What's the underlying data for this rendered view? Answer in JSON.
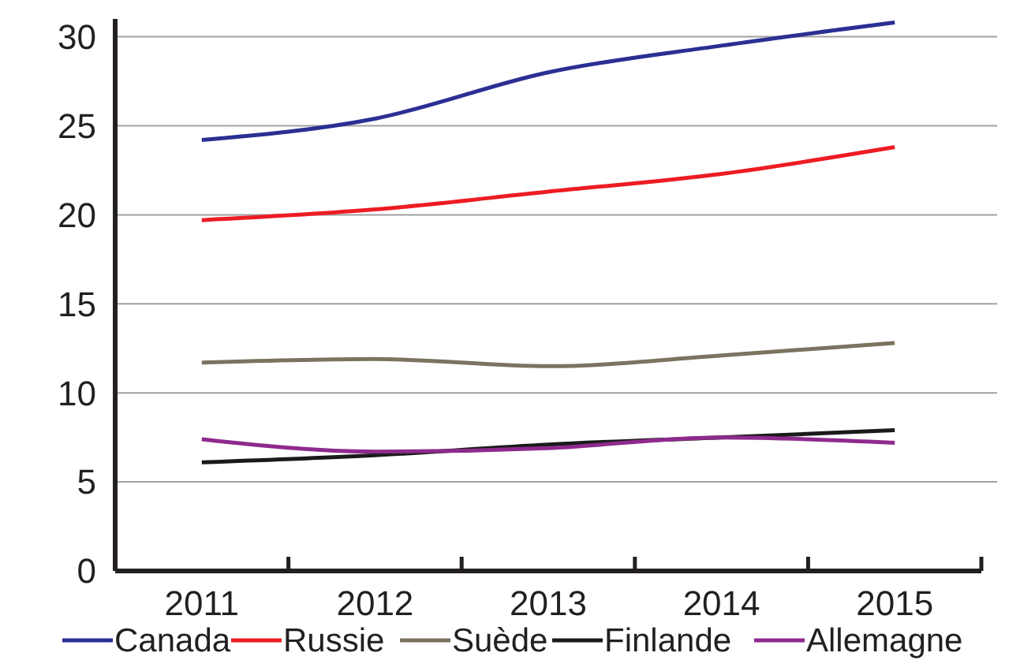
{
  "chart_data": {
    "type": "line",
    "categories": [
      "2011",
      "2012",
      "2013",
      "2014",
      "2015"
    ],
    "series": [
      {
        "name": "Canada",
        "color": "#2b2f93",
        "values": [
          24.2,
          25.4,
          28.0,
          29.5,
          30.8
        ]
      },
      {
        "name": "Russie",
        "color": "#ed1c24",
        "values": [
          19.7,
          20.3,
          21.3,
          22.3,
          23.8
        ]
      },
      {
        "name": "Suède",
        "color": "#7b7360",
        "values": [
          11.7,
          11.9,
          11.5,
          12.1,
          12.8
        ]
      },
      {
        "name": "Finlande",
        "color": "#1a1a1a",
        "values": [
          6.1,
          6.5,
          7.1,
          7.5,
          7.9
        ]
      },
      {
        "name": "Allemagne",
        "color": "#8e2a8e",
        "values": [
          7.4,
          6.7,
          6.9,
          7.5,
          7.2
        ]
      }
    ],
    "ylim": [
      0,
      31
    ],
    "yticks": [
      0,
      5,
      10,
      15,
      20,
      25,
      30
    ],
    "grid": "y",
    "legend": "bottom",
    "marker": "none",
    "line_style": "solid"
  }
}
